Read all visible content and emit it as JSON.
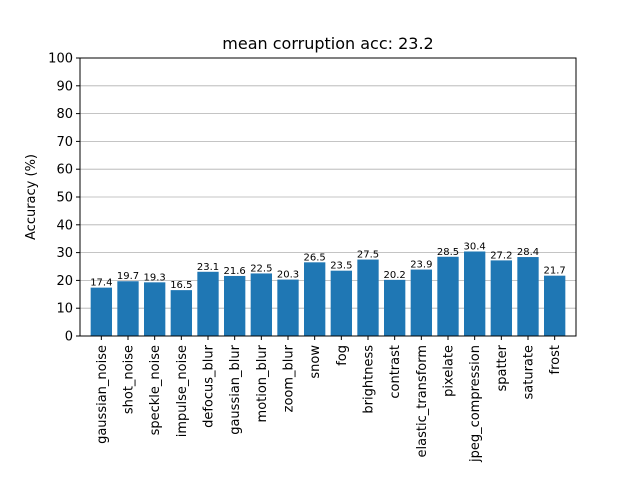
{
  "chart_data": {
    "type": "bar",
    "title": "mean corruption acc: 23.2",
    "xlabel": "",
    "ylabel": "Accuracy (%)",
    "ylim": [
      0,
      100
    ],
    "yticks": [
      "0",
      "10",
      "20",
      "30",
      "40",
      "50",
      "60",
      "70",
      "80",
      "90",
      "100"
    ],
    "grid": "horizontal",
    "categories": [
      "gaussian_noise",
      "shot_noise",
      "speckle_noise",
      "impulse_noise",
      "defocus_blur",
      "gaussian_blur",
      "motion_blur",
      "zoom_blur",
      "snow",
      "fog",
      "brightness",
      "contrast",
      "elastic_transform",
      "pixelate",
      "jpeg_compression",
      "spatter",
      "saturate",
      "frost"
    ],
    "values": [
      17.4,
      19.7,
      19.3,
      16.5,
      23.1,
      21.6,
      22.5,
      20.3,
      26.5,
      23.5,
      27.5,
      20.2,
      23.9,
      28.5,
      30.4,
      27.2,
      28.4,
      21.7
    ],
    "labels": [
      "17.4",
      "19.7",
      "19.3",
      "16.5",
      "23.1",
      "21.6",
      "22.5",
      "20.3",
      "26.5",
      "23.5",
      "27.5",
      "20.2",
      "23.9",
      "28.5",
      "30.4",
      "27.2",
      "28.4",
      "21.7"
    ],
    "bar_color": "#1f77b4"
  }
}
